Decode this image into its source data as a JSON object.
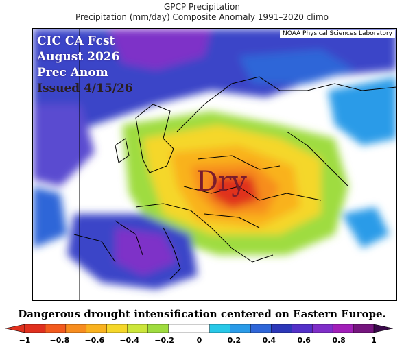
{
  "header": {
    "line1": "GPCP Precipitation",
    "line2": "Precipitation (mm/day) Composite Anomaly 1991–2020 climo"
  },
  "source_label": "NOAA Physical Sciences Laboratory",
  "overlay": {
    "line1": "CIC CA Fcst",
    "line2": "August 2026",
    "line3": "Prec Anom",
    "line4": "Issued 4/15/26"
  },
  "dry_label": "Dry",
  "caption": "Dangerous drought intensification centered on Eastern Europe.",
  "colorbar": {
    "ticks": [
      "−1",
      "−0.8",
      "−0.6",
      "−0.4",
      "−0.2",
      "0",
      "0.2",
      "0.4",
      "0.6",
      "0.8",
      "1"
    ],
    "colors": [
      "#e0301e",
      "#f25a1e",
      "#f78d1f",
      "#f9b21f",
      "#f5d72a",
      "#cce63b",
      "#9fdc3f",
      "#ffffff",
      "#ffffff",
      "#28c8e8",
      "#2a9be8",
      "#2f66d8",
      "#2c37b8",
      "#5330c8",
      "#7f2ec8",
      "#a11fb8",
      "#75157e"
    ]
  }
}
